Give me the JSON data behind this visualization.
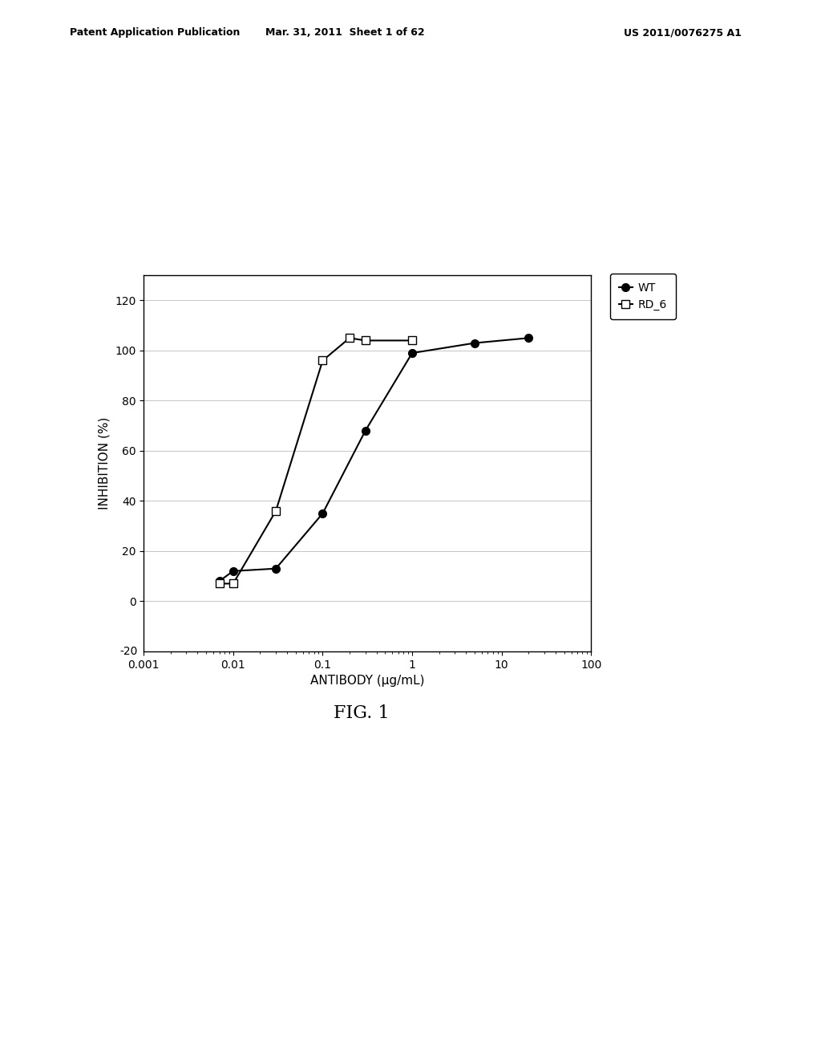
{
  "wt_x": [
    0.007,
    0.01,
    0.03,
    0.1,
    0.3,
    1.0,
    5.0,
    20.0
  ],
  "wt_y": [
    8,
    12,
    13,
    35,
    68,
    99,
    103,
    105
  ],
  "rd6_x": [
    0.007,
    0.01,
    0.03,
    0.1,
    0.2,
    0.3,
    1.0
  ],
  "rd6_y": [
    7,
    7,
    36,
    96,
    105,
    104,
    104
  ],
  "xlabel": "ANTIBODY (μg/mL)",
  "ylabel": "INHIBITION (%)",
  "title_left": "Patent Application Publication",
  "title_mid": "Mar. 31, 2011  Sheet 1 of 62",
  "title_right": "US 2011/0076275 A1",
  "fig_label": "FIG. 1",
  "legend_wt": "WT",
  "legend_rd6": "RD_6",
  "ylim": [
    -20,
    130
  ],
  "yticks": [
    0,
    20,
    40,
    60,
    80,
    100,
    120
  ],
  "xtick_positions": [
    0.001,
    0.01,
    0.1,
    1,
    10,
    100
  ],
  "xtick_labels": [
    "0.001",
    "0.01",
    "0.1",
    "1",
    "10",
    "100"
  ],
  "background_color": "#ffffff",
  "line_color": "#000000",
  "header_fontsize": 9,
  "axis_label_fontsize": 11,
  "tick_fontsize": 10,
  "legend_fontsize": 10,
  "fig_label_fontsize": 16
}
